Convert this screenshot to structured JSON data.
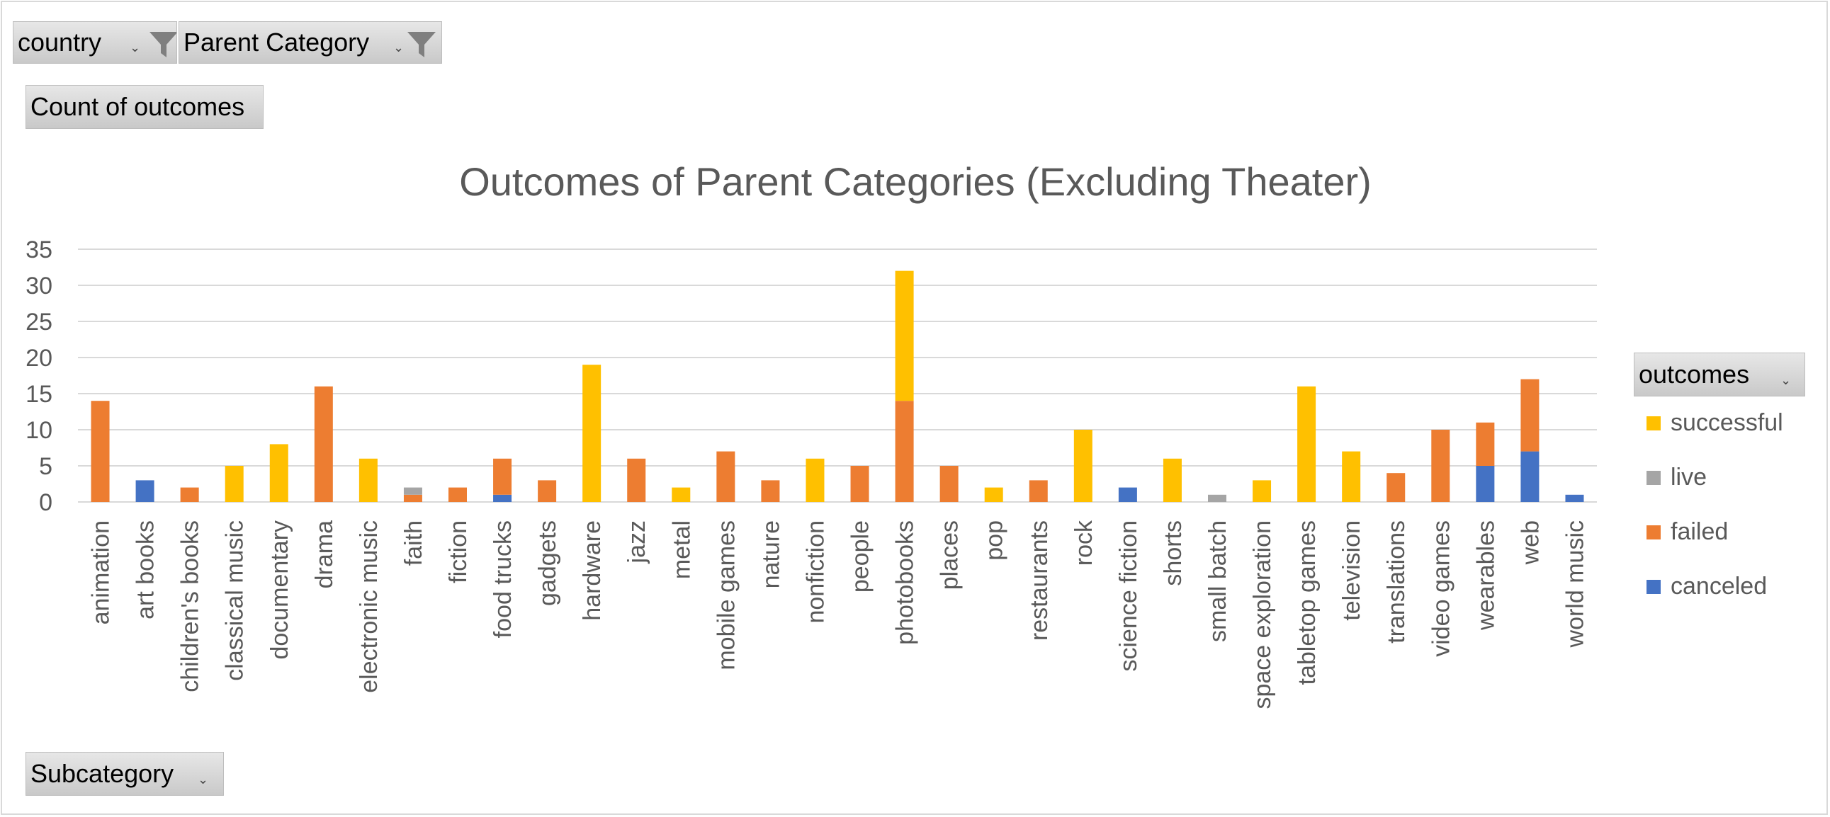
{
  "filters": {
    "country": {
      "label": "country",
      "icon": "filter-icon"
    },
    "parent_category": {
      "label": "Parent Category",
      "icon": "filter-icon"
    }
  },
  "value_field": {
    "label": "Count of outcomes"
  },
  "axis_field": {
    "label": "Subcategory"
  },
  "legend_field": {
    "label": "outcomes"
  },
  "colors": {
    "successful": "#FFC000",
    "live": "#A5A5A5",
    "failed": "#ED7D31",
    "canceled": "#4472C4",
    "grid": "#d9d9d9",
    "text": "#595959"
  },
  "chart_data": {
    "type": "bar",
    "stacked": true,
    "title": "Outcomes of Parent Categories (Excluding Theater)",
    "xlabel": "",
    "ylabel": "",
    "ylim": [
      0,
      35
    ],
    "yticks": [
      0,
      5,
      10,
      15,
      20,
      25,
      30,
      35
    ],
    "grid": true,
    "legend_position": "right",
    "categories": [
      "animation",
      "art books",
      "children's books",
      "classical music",
      "documentary",
      "drama",
      "electronic music",
      "faith",
      "fiction",
      "food trucks",
      "gadgets",
      "hardware",
      "jazz",
      "metal",
      "mobile games",
      "nature",
      "nonfiction",
      "people",
      "photobooks",
      "places",
      "pop",
      "restaurants",
      "rock",
      "science fiction",
      "shorts",
      "small batch",
      "space exploration",
      "tabletop games",
      "television",
      "translations",
      "video games",
      "wearables",
      "web",
      "world music"
    ],
    "series": [
      {
        "name": "canceled",
        "color": "#4472C4",
        "values": [
          0,
          3,
          0,
          0,
          0,
          0,
          0,
          0,
          0,
          1,
          0,
          0,
          0,
          0,
          0,
          0,
          0,
          0,
          0,
          0,
          0,
          0,
          0,
          2,
          0,
          0,
          0,
          0,
          0,
          0,
          0,
          5,
          7,
          1
        ]
      },
      {
        "name": "failed",
        "color": "#ED7D31",
        "values": [
          14,
          0,
          2,
          0,
          0,
          16,
          0,
          1,
          2,
          5,
          3,
          0,
          6,
          0,
          7,
          3,
          0,
          5,
          14,
          5,
          0,
          3,
          0,
          0,
          0,
          0,
          0,
          0,
          0,
          4,
          10,
          6,
          10,
          0
        ]
      },
      {
        "name": "live",
        "color": "#A5A5A5",
        "values": [
          0,
          0,
          0,
          0,
          0,
          0,
          0,
          1,
          0,
          0,
          0,
          0,
          0,
          0,
          0,
          0,
          0,
          0,
          0,
          0,
          0,
          0,
          0,
          0,
          0,
          1,
          0,
          0,
          0,
          0,
          0,
          0,
          0,
          0
        ]
      },
      {
        "name": "successful",
        "color": "#FFC000",
        "values": [
          0,
          0,
          0,
          5,
          8,
          0,
          6,
          0,
          0,
          0,
          0,
          19,
          0,
          2,
          0,
          0,
          6,
          0,
          18,
          0,
          2,
          0,
          10,
          0,
          6,
          0,
          3,
          16,
          7,
          0,
          0,
          0,
          0,
          0
        ]
      }
    ],
    "legend_order": [
      "successful",
      "live",
      "failed",
      "canceled"
    ]
  }
}
